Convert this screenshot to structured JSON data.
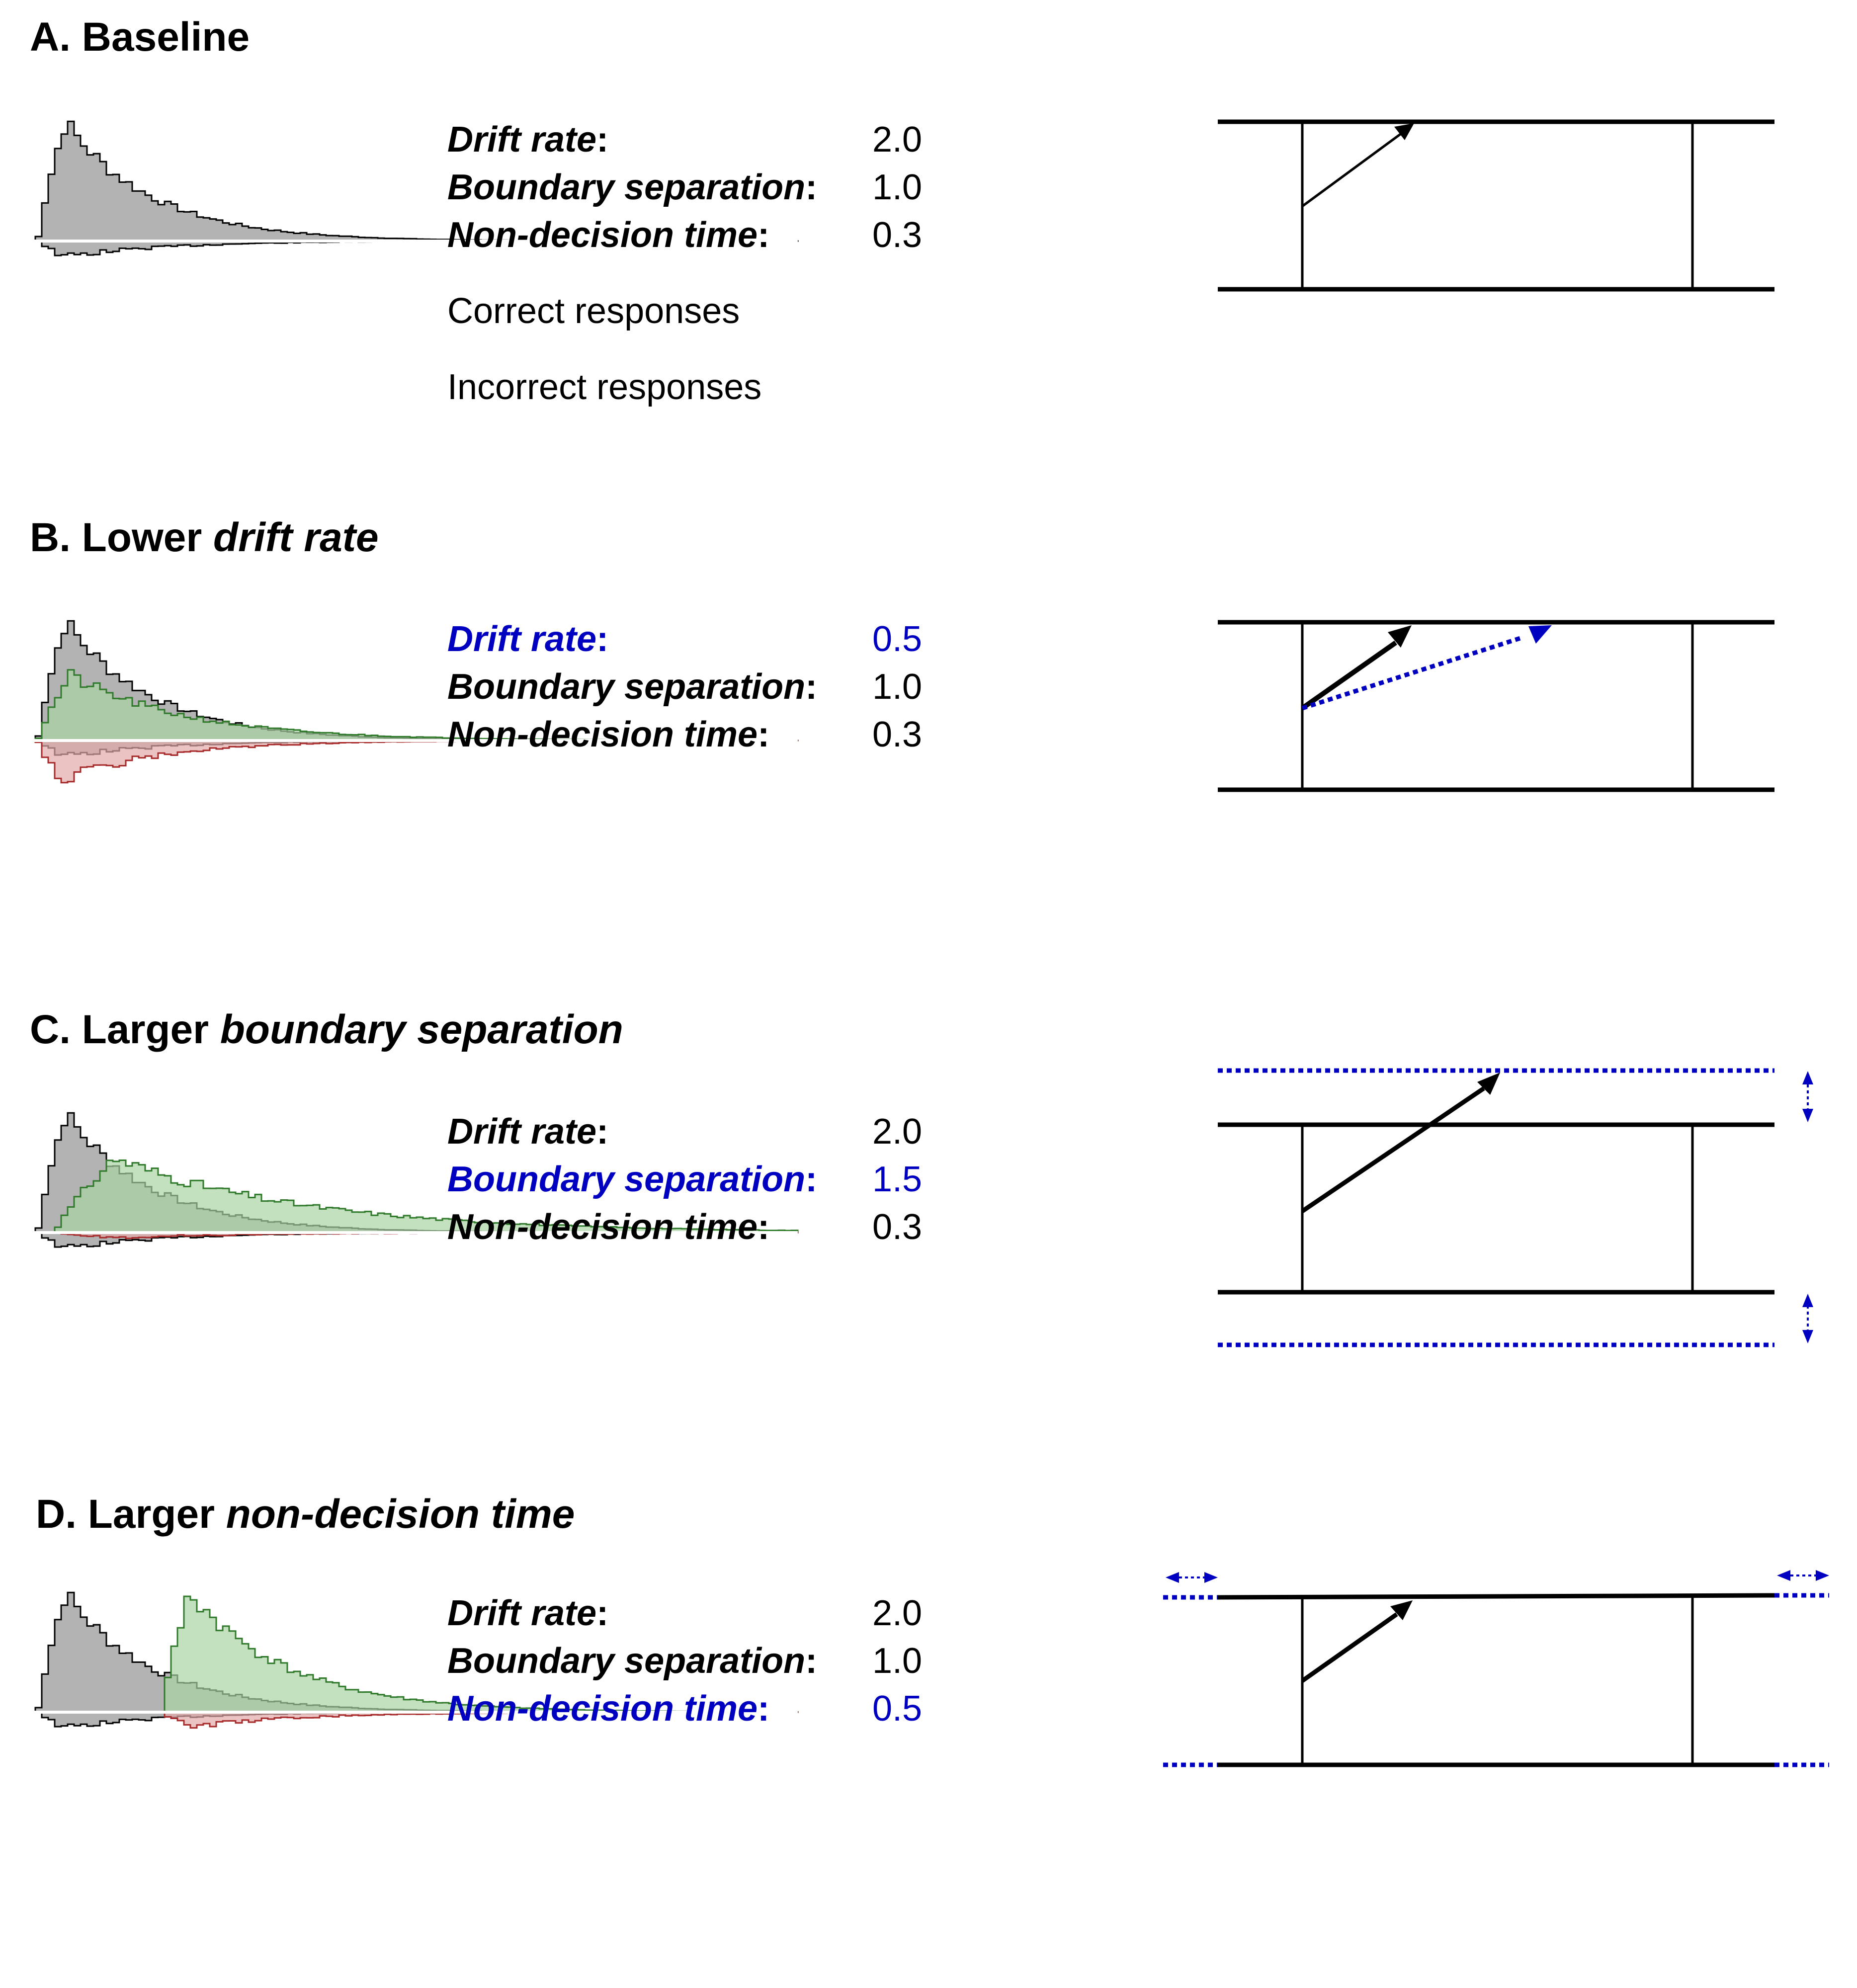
{
  "colors": {
    "baseline_fill": "#b3b3b3",
    "correct_fill": "#a9d3a4",
    "correct_line": "#2f7a2a",
    "incorrect_fill": "#e2aaaa",
    "incorrect_line": "#a62a2a",
    "highlight": "#0000c0",
    "text": "#000000"
  },
  "params": {
    "drift_label": "Drift rate",
    "boundary_label": "Boundary separation",
    "ndt_label": "Non-decision time",
    "colon": ":"
  },
  "panels": [
    {
      "id": "A",
      "title_prefix": "A. Baseline",
      "title_italic": "",
      "drift": "2.0",
      "boundary": "1.0",
      "ndt": "0.3",
      "highlight": "",
      "correct_label": "Correct responses",
      "incorrect_label": "Incorrect responses"
    },
    {
      "id": "B",
      "title_prefix": "B. Lower ",
      "title_italic": "drift rate",
      "drift": "0.5",
      "boundary": "1.0",
      "ndt": "0.3",
      "highlight": "drift",
      "correct_label": "",
      "incorrect_label": ""
    },
    {
      "id": "C",
      "title_prefix": "C. Larger ",
      "title_italic": "boundary separation",
      "drift": "2.0",
      "boundary": "1.5",
      "ndt": "0.3",
      "highlight": "boundary",
      "correct_label": "",
      "incorrect_label": ""
    },
    {
      "id": "D",
      "title_prefix": "D. Larger ",
      "title_italic": "non-decision time",
      "drift": "2.0",
      "boundary": "1.0",
      "ndt": "0.5",
      "highlight": "ndt",
      "correct_label": "",
      "incorrect_label": ""
    }
  ]
}
